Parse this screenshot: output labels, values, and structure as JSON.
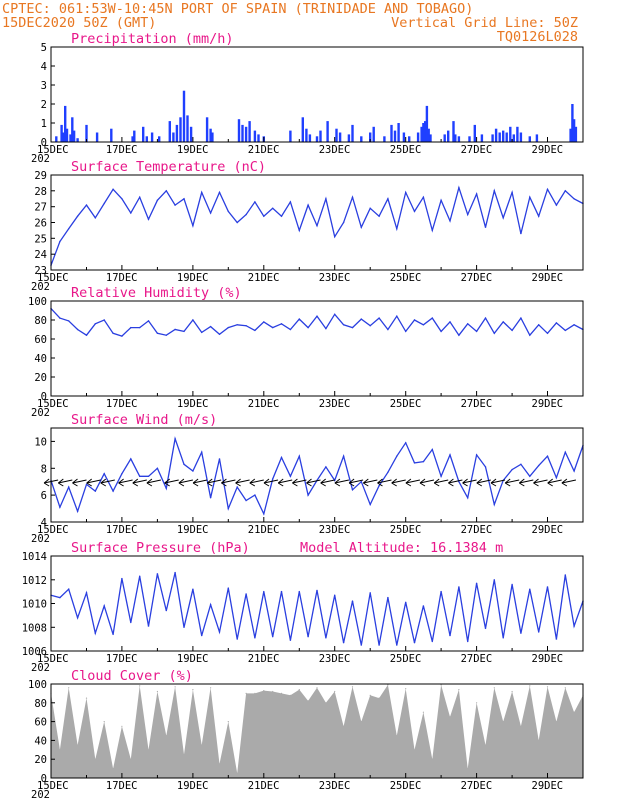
{
  "header": {
    "left_line1": "CPTEC:  061:53W-10:45N  PORT OF SPAIN (TRINIDADE AND TOBAGO)",
    "left_line2": "15DEC2020 50Z (GMT)",
    "right_line2": "Vertical Grid Line: 50Z",
    "right_line3": "TQ0126L028"
  },
  "x_axis": {
    "tick_labels": [
      "15DEC",
      "17DEC",
      "19DEC",
      "21DEC",
      "23DEC",
      "25DEC",
      "27DEC",
      "29DEC"
    ],
    "year_label": "202",
    "day_range": [
      0,
      15
    ]
  },
  "chart_data": [
    {
      "type": "bar",
      "title": "Precipitation (mm/h)",
      "ylim": [
        0,
        5
      ],
      "yticks": [
        0,
        1,
        2,
        3,
        4,
        5
      ],
      "color": "#1f3fff",
      "bars": [
        [
          0.15,
          0.3
        ],
        [
          0.3,
          0.9
        ],
        [
          0.35,
          0.5
        ],
        [
          0.4,
          1.9
        ],
        [
          0.45,
          0.7
        ],
        [
          0.55,
          0.4
        ],
        [
          0.6,
          1.3
        ],
        [
          0.65,
          0.6
        ],
        [
          0.75,
          0.2
        ],
        [
          1.0,
          0.9
        ],
        [
          1.3,
          0.5
        ],
        [
          1.7,
          0.7
        ],
        [
          2.3,
          0.3
        ],
        [
          2.35,
          0.6
        ],
        [
          2.6,
          0.8
        ],
        [
          2.7,
          0.3
        ],
        [
          2.85,
          0.5
        ],
        [
          3.05,
          0.3
        ],
        [
          3.35,
          1.1
        ],
        [
          3.45,
          0.5
        ],
        [
          3.55,
          0.9
        ],
        [
          3.65,
          1.3
        ],
        [
          3.75,
          2.7
        ],
        [
          3.85,
          1.4
        ],
        [
          3.95,
          0.8
        ],
        [
          4.4,
          1.3
        ],
        [
          4.5,
          0.7
        ],
        [
          4.55,
          0.5
        ],
        [
          5.3,
          1.2
        ],
        [
          5.4,
          0.9
        ],
        [
          5.5,
          0.8
        ],
        [
          5.6,
          1.1
        ],
        [
          5.75,
          0.6
        ],
        [
          5.85,
          0.4
        ],
        [
          6.0,
          0.3
        ],
        [
          6.75,
          0.6
        ],
        [
          7.1,
          1.3
        ],
        [
          7.2,
          0.7
        ],
        [
          7.3,
          0.4
        ],
        [
          7.5,
          0.3
        ],
        [
          7.6,
          0.6
        ],
        [
          7.8,
          1.1
        ],
        [
          8.05,
          0.7
        ],
        [
          8.15,
          0.5
        ],
        [
          8.4,
          0.4
        ],
        [
          8.5,
          0.9
        ],
        [
          8.75,
          0.3
        ],
        [
          9.0,
          0.5
        ],
        [
          9.1,
          0.8
        ],
        [
          9.4,
          0.3
        ],
        [
          9.6,
          0.9
        ],
        [
          9.7,
          0.6
        ],
        [
          9.8,
          1.0
        ],
        [
          9.95,
          0.5
        ],
        [
          10.1,
          0.3
        ],
        [
          10.35,
          0.5
        ],
        [
          10.45,
          0.8
        ],
        [
          10.5,
          1.0
        ],
        [
          10.55,
          1.1
        ],
        [
          10.6,
          1.9
        ],
        [
          10.65,
          0.7
        ],
        [
          10.7,
          0.4
        ],
        [
          11.1,
          0.4
        ],
        [
          11.2,
          0.6
        ],
        [
          11.35,
          1.1
        ],
        [
          11.4,
          0.4
        ],
        [
          11.5,
          0.3
        ],
        [
          11.8,
          0.3
        ],
        [
          11.95,
          0.9
        ],
        [
          12.15,
          0.4
        ],
        [
          12.45,
          0.4
        ],
        [
          12.55,
          0.7
        ],
        [
          12.65,
          0.5
        ],
        [
          12.75,
          0.6
        ],
        [
          12.85,
          0.5
        ],
        [
          12.95,
          0.8
        ],
        [
          13.05,
          0.4
        ],
        [
          13.15,
          0.8
        ],
        [
          13.25,
          0.5
        ],
        [
          13.5,
          0.3
        ],
        [
          13.7,
          0.4
        ],
        [
          14.65,
          0.7
        ],
        [
          14.7,
          2.0
        ],
        [
          14.75,
          1.2
        ],
        [
          14.8,
          0.8
        ]
      ]
    },
    {
      "type": "line",
      "title": "Surface Temperature (nC)",
      "ylim": [
        23,
        29
      ],
      "yticks": [
        23,
        24,
        25,
        26,
        27,
        28,
        29
      ],
      "color": "#2a3fe0",
      "x": [
        0,
        0.25,
        0.5,
        0.75,
        1.0,
        1.25,
        1.5,
        1.75,
        2.0,
        2.25,
        2.5,
        2.75,
        3.0,
        3.25,
        3.5,
        3.75,
        4.0,
        4.25,
        4.5,
        4.75,
        5.0,
        5.25,
        5.5,
        5.75,
        6.0,
        6.25,
        6.5,
        6.75,
        7.0,
        7.25,
        7.5,
        7.75,
        8.0,
        8.25,
        8.5,
        8.75,
        9.0,
        9.25,
        9.5,
        9.75,
        10.0,
        10.25,
        10.5,
        10.75,
        11.0,
        11.25,
        11.5,
        11.75,
        12.0,
        12.25,
        12.5,
        12.75,
        13.0,
        13.25,
        13.5,
        13.75,
        14.0,
        14.25,
        14.5,
        14.75,
        15.0
      ],
      "values": [
        23.3,
        24.8,
        25.6,
        26.4,
        27.1,
        26.3,
        27.2,
        28.1,
        27.5,
        26.6,
        27.6,
        26.2,
        27.4,
        28.0,
        27.1,
        27.5,
        25.8,
        27.9,
        26.6,
        27.9,
        26.7,
        26.0,
        26.5,
        27.3,
        26.4,
        26.9,
        26.4,
        27.3,
        25.5,
        27.1,
        25.8,
        27.5,
        25.1,
        26.0,
        27.6,
        25.7,
        26.9,
        26.4,
        27.5,
        25.6,
        27.9,
        26.7,
        27.6,
        25.5,
        27.4,
        26.1,
        28.2,
        26.5,
        27.8,
        25.7,
        28.0,
        26.3,
        27.9,
        25.3,
        27.6,
        26.4,
        28.1,
        27.1,
        28.0,
        27.5,
        27.2
      ]
    },
    {
      "type": "line",
      "title": "Relative Humidity (%)",
      "ylim": [
        0,
        100
      ],
      "yticks": [
        0,
        20,
        40,
        60,
        80,
        100
      ],
      "color": "#2a3fe0",
      "x": [
        0,
        0.25,
        0.5,
        0.75,
        1.0,
        1.25,
        1.5,
        1.75,
        2.0,
        2.25,
        2.5,
        2.75,
        3.0,
        3.25,
        3.5,
        3.75,
        4.0,
        4.25,
        4.5,
        4.75,
        5.0,
        5.25,
        5.5,
        5.75,
        6.0,
        6.25,
        6.5,
        6.75,
        7.0,
        7.25,
        7.5,
        7.75,
        8.0,
        8.25,
        8.5,
        8.75,
        9.0,
        9.25,
        9.5,
        9.75,
        10.0,
        10.25,
        10.5,
        10.75,
        11.0,
        11.25,
        11.5,
        11.75,
        12.0,
        12.25,
        12.5,
        12.75,
        13.0,
        13.25,
        13.5,
        13.75,
        14.0,
        14.25,
        14.5,
        14.75,
        15.0
      ],
      "values": [
        92,
        82,
        79,
        70,
        64,
        76,
        80,
        66,
        63,
        72,
        72,
        79,
        66,
        64,
        70,
        68,
        80,
        67,
        73,
        65,
        72,
        75,
        74,
        69,
        78,
        72,
        76,
        70,
        81,
        72,
        84,
        71,
        86,
        75,
        72,
        81,
        74,
        82,
        70,
        84,
        68,
        80,
        75,
        82,
        68,
        78,
        64,
        76,
        68,
        82,
        66,
        78,
        69,
        82,
        64,
        75,
        66,
        77,
        69,
        75,
        70
      ]
    },
    {
      "type": "line",
      "title": "Surface Wind (m/s)",
      "ylim": [
        4,
        11
      ],
      "yticks": [
        4,
        6,
        8,
        10
      ],
      "color": "#2a3fe0",
      "x": [
        0,
        0.25,
        0.5,
        0.75,
        1.0,
        1.25,
        1.5,
        1.75,
        2.0,
        2.25,
        2.5,
        2.75,
        3.0,
        3.25,
        3.5,
        3.75,
        4.0,
        4.25,
        4.5,
        4.75,
        5.0,
        5.25,
        5.5,
        5.75,
        6.0,
        6.25,
        6.5,
        6.75,
        7.0,
        7.25,
        7.5,
        7.75,
        8.0,
        8.25,
        8.5,
        8.75,
        9.0,
        9.25,
        9.5,
        9.75,
        10.0,
        10.25,
        10.5,
        10.75,
        11.0,
        11.25,
        11.5,
        11.75,
        12.0,
        12.25,
        12.5,
        12.75,
        13.0,
        13.25,
        13.5,
        13.75,
        14.0,
        14.25,
        14.5,
        14.75,
        15.0
      ],
      "values": [
        7.1,
        5.1,
        6.6,
        4.8,
        6.8,
        6.3,
        7.6,
        6.3,
        7.6,
        8.7,
        7.4,
        7.4,
        8.0,
        6.5,
        10.2,
        8.3,
        7.8,
        9.2,
        5.8,
        8.7,
        5.0,
        6.6,
        5.6,
        6.0,
        4.6,
        7.2,
        8.8,
        7.4,
        8.9,
        6.0,
        7.1,
        8.1,
        7.1,
        8.9,
        6.4,
        7.0,
        5.3,
        6.7,
        7.7,
        8.9,
        9.9,
        8.4,
        8.5,
        9.4,
        7.4,
        9.0,
        7.0,
        5.8,
        9.0,
        8.1,
        5.3,
        7.1,
        7.9,
        8.3,
        7.4,
        8.2,
        8.9,
        7.3,
        9.2,
        7.8,
        9.7
      ],
      "barbs_x": [
        0.2,
        0.6,
        1.0,
        1.4,
        1.8,
        2.3,
        2.7,
        3.1,
        3.6,
        4.0,
        4.4,
        4.8,
        5.2,
        5.6,
        6.0,
        6.4,
        6.8,
        7.2,
        7.6,
        8.0,
        8.4,
        8.8,
        9.2,
        9.6,
        10.0,
        10.4,
        10.8,
        11.2,
        11.6,
        12.0,
        12.4,
        12.8,
        13.2,
        13.6,
        14.0,
        14.4,
        14.8
      ]
    },
    {
      "type": "line",
      "title": "Surface Pressure (hPa)",
      "annotation": "Model Altitude: 16.1384 m",
      "ylim": [
        1006,
        1014
      ],
      "yticks": [
        1006,
        1008,
        1010,
        1012,
        1014
      ],
      "color": "#2a3fe0",
      "x": [
        0,
        0.25,
        0.5,
        0.75,
        1.0,
        1.25,
        1.5,
        1.75,
        2.0,
        2.25,
        2.5,
        2.75,
        3.0,
        3.25,
        3.5,
        3.75,
        4.0,
        4.25,
        4.5,
        4.75,
        5.0,
        5.25,
        5.5,
        5.75,
        6.0,
        6.25,
        6.5,
        6.75,
        7.0,
        7.25,
        7.5,
        7.75,
        8.0,
        8.25,
        8.5,
        8.75,
        9.0,
        9.25,
        9.5,
        9.75,
        10.0,
        10.25,
        10.5,
        10.75,
        11.0,
        11.25,
        11.5,
        11.75,
        12.0,
        12.25,
        12.5,
        12.75,
        13.0,
        13.25,
        13.5,
        13.75,
        14.0,
        14.25,
        14.5,
        14.75,
        15.0
      ],
      "values": [
        1010.7,
        1010.5,
        1011.2,
        1008.8,
        1010.9,
        1007.5,
        1009.8,
        1007.4,
        1012.1,
        1008.4,
        1012.3,
        1008.1,
        1012.5,
        1009.4,
        1012.6,
        1008.0,
        1011.2,
        1007.3,
        1009.9,
        1007.6,
        1011.3,
        1007.0,
        1010.8,
        1007.1,
        1011.0,
        1007.2,
        1011.0,
        1006.9,
        1011.0,
        1007.2,
        1011.1,
        1007.1,
        1010.7,
        1006.7,
        1010.2,
        1006.5,
        1010.9,
        1006.5,
        1010.5,
        1006.5,
        1010.1,
        1006.7,
        1009.8,
        1006.8,
        1011.0,
        1007.3,
        1011.4,
        1006.8,
        1011.7,
        1007.9,
        1012.0,
        1007.1,
        1011.6,
        1007.5,
        1011.2,
        1007.6,
        1011.4,
        1007.0,
        1012.4,
        1008.1,
        1010.2
      ]
    },
    {
      "type": "area",
      "title": "Cloud Cover (%)",
      "ylim": [
        0,
        100
      ],
      "yticks": [
        0,
        20,
        40,
        60,
        80,
        100
      ],
      "color": "#aaaaaa",
      "x": [
        0,
        0.25,
        0.5,
        0.75,
        1.0,
        1.25,
        1.5,
        1.75,
        2.0,
        2.25,
        2.5,
        2.75,
        3.0,
        3.25,
        3.5,
        3.75,
        4.0,
        4.25,
        4.5,
        4.75,
        5.0,
        5.25,
        5.5,
        5.75,
        6.0,
        6.25,
        6.5,
        6.75,
        7.0,
        7.25,
        7.5,
        7.75,
        8.0,
        8.25,
        8.5,
        8.75,
        9.0,
        9.25,
        9.5,
        9.75,
        10.0,
        10.25,
        10.5,
        10.75,
        11.0,
        11.25,
        11.5,
        11.75,
        12.0,
        12.25,
        12.5,
        12.75,
        13.0,
        13.25,
        13.5,
        13.75,
        14.0,
        14.25,
        14.5,
        14.75,
        15.0
      ],
      "values": [
        90,
        30,
        96,
        35,
        85,
        20,
        60,
        10,
        55,
        20,
        98,
        30,
        92,
        45,
        97,
        25,
        94,
        35,
        96,
        15,
        60,
        5,
        90,
        90,
        93,
        92,
        90,
        88,
        94,
        82,
        96,
        80,
        92,
        55,
        97,
        60,
        88,
        85,
        99,
        45,
        95,
        30,
        70,
        20,
        99,
        65,
        94,
        10,
        80,
        35,
        96,
        60,
        92,
        55,
        98,
        40,
        97,
        60,
        96,
        70,
        88
      ]
    }
  ]
}
